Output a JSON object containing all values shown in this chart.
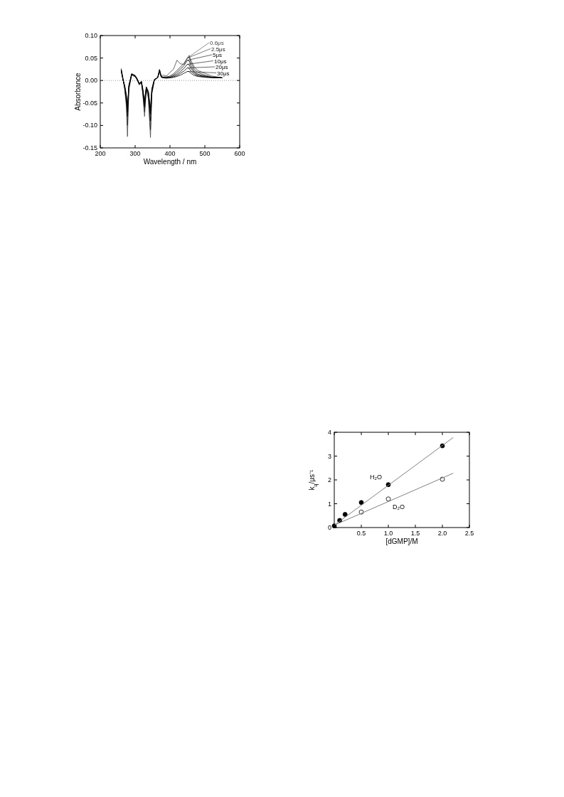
{
  "chart_data": [
    {
      "type": "line",
      "xlabel": "Wavelength / nm",
      "ylabel": "Absorbance",
      "xlim": [
        200,
        600
      ],
      "ylim": [
        -0.15,
        0.1
      ],
      "xticks": [
        200,
        300,
        400,
        500,
        600
      ],
      "yticks": [
        {
          "value": -0.15,
          "label": "-0.15"
        },
        {
          "value": -0.1,
          "label": "-0.10"
        },
        {
          "value": -0.05,
          "label": "-0.05"
        },
        {
          "value": 0,
          "label": "0.00"
        },
        {
          "value": 0.05,
          "label": "0.05"
        },
        {
          "value": 0.1,
          "label": "0.10"
        }
      ],
      "marker": "none",
      "line_style": "solid",
      "legend": "top right",
      "ref_lines": [
        {
          "axis": "y",
          "value": 0,
          "line_style": "dotted",
          "color": "#999999"
        }
      ],
      "x": [
        260,
        265,
        270,
        275,
        278,
        282,
        290,
        300,
        305,
        312,
        318,
        322,
        327,
        332,
        338,
        344,
        348,
        355,
        365,
        370,
        375,
        380,
        390,
        400,
        410,
        420,
        430,
        440,
        450,
        455,
        460,
        470,
        480,
        500,
        520,
        550
      ],
      "series": [
        {
          "name": "0.6μs",
          "color": "#444444",
          "values": [
            0.027,
            0.005,
            -0.02,
            -0.06,
            -0.125,
            -0.02,
            0.012,
            0.008,
            0.002,
            -0.01,
            -0.005,
            -0.03,
            -0.08,
            -0.02,
            -0.04,
            -0.127,
            -0.03,
            0,
            0.008,
            0.025,
            0.01,
            0.012,
            0.01,
            0.018,
            0.025,
            0.045,
            0.037,
            0.036,
            0.05,
            0.056,
            0.045,
            0.03,
            0.022,
            0.016,
            0.01,
            0.006
          ]
        },
        {
          "name": "2.5μs",
          "color": "#222222",
          "values": [
            0.025,
            0.004,
            -0.018,
            -0.05,
            -0.1,
            -0.018,
            0.013,
            0.009,
            0.003,
            -0.009,
            -0.004,
            -0.028,
            -0.07,
            -0.018,
            -0.035,
            -0.11,
            -0.028,
            0,
            0.007,
            0.024,
            0.009,
            0.008,
            0.008,
            0.01,
            0.015,
            0.022,
            0.03,
            0.038,
            0.05,
            0.052,
            0.04,
            0.025,
            0.018,
            0.012,
            0.008,
            0.006
          ]
        },
        {
          "name": "5μs",
          "color": "#000000",
          "values": [
            0.024,
            0.003,
            -0.015,
            -0.045,
            -0.08,
            -0.015,
            0.014,
            0.01,
            0.004,
            -0.008,
            -0.003,
            -0.025,
            -0.06,
            -0.017,
            -0.03,
            -0.09,
            -0.025,
            0.001,
            0.007,
            0.023,
            0.008,
            0.007,
            0.007,
            0.008,
            0.012,
            0.018,
            0.025,
            0.033,
            0.045,
            0.044,
            0.033,
            0.02,
            0.014,
            0.01,
            0.007,
            0.006
          ]
        },
        {
          "name": "10μs",
          "color": "#000000",
          "values": [
            0.023,
            0.003,
            -0.013,
            -0.04,
            -0.07,
            -0.013,
            0.014,
            0.01,
            0.004,
            -0.008,
            -0.003,
            -0.022,
            -0.055,
            -0.016,
            -0.028,
            -0.075,
            -0.022,
            0.001,
            0.007,
            0.022,
            0.008,
            0.007,
            0.006,
            0.007,
            0.01,
            0.014,
            0.02,
            0.027,
            0.036,
            0.035,
            0.027,
            0.017,
            0.012,
            0.009,
            0.007,
            0.006
          ]
        },
        {
          "name": "20μs",
          "color": "#000000",
          "values": [
            0.022,
            0.002,
            -0.012,
            -0.035,
            -0.065,
            -0.012,
            0.015,
            0.011,
            0.005,
            -0.007,
            -0.002,
            -0.02,
            -0.05,
            -0.015,
            -0.026,
            -0.068,
            -0.02,
            0.002,
            0.007,
            0.021,
            0.008,
            0.006,
            0.006,
            0.006,
            0.008,
            0.011,
            0.016,
            0.021,
            0.028,
            0.027,
            0.021,
            0.014,
            0.01,
            0.008,
            0.007,
            0.006
          ]
        },
        {
          "name": "30μs",
          "color": "#000000",
          "values": [
            0.021,
            0.002,
            -0.011,
            -0.032,
            -0.06,
            -0.011,
            0.015,
            0.011,
            0.005,
            -0.007,
            -0.002,
            -0.018,
            -0.045,
            -0.014,
            -0.024,
            -0.062,
            -0.018,
            0.002,
            0.007,
            0.02,
            0.007,
            0.006,
            0.005,
            0.006,
            0.007,
            0.009,
            0.012,
            0.016,
            0.02,
            0.02,
            0.016,
            0.011,
            0.009,
            0.007,
            0.006,
            0.006
          ]
        }
      ]
    },
    {
      "type": "scatter",
      "xlabel": "[dGMP]/M",
      "ylabel": "k$_{q}$/μs⁻¹",
      "xlim": [
        0,
        2.5
      ],
      "ylim": [
        0,
        4
      ],
      "xticks": [
        {
          "value": 0,
          "label": null
        },
        {
          "value": 0.5,
          "label": "0.5"
        },
        {
          "value": 1,
          "label": "1.0"
        },
        {
          "value": 1.5,
          "label": "1.5"
        },
        {
          "value": 2,
          "label": "2.0"
        },
        {
          "value": 2.5,
          "label": "2.5"
        }
      ],
      "yticks": [
        0,
        1,
        2,
        3,
        4
      ],
      "marker": "circle",
      "series": [
        {
          "name": "H₂O",
          "color": "#000000",
          "x": [
            0,
            0.1,
            0.2,
            0.5,
            1,
            2
          ],
          "values": [
            0.07,
            0.3,
            0.55,
            1.05,
            1.8,
            3.43
          ]
        },
        {
          "name": "D₂O",
          "color": "#ffffff",
          "x": [
            0.5,
            1,
            2
          ],
          "values": [
            0.65,
            1.2,
            2.03
          ]
        },
        {
          "type": "line",
          "marker": "none",
          "color": "#808080",
          "x": [
            0,
            2.2
          ],
          "values": [
            0.1,
            3.78
          ]
        },
        {
          "type": "line",
          "marker": "none",
          "color": "#808080",
          "x": [
            0,
            2.2
          ],
          "values": [
            0.1,
            2.28
          ]
        }
      ]
    }
  ]
}
